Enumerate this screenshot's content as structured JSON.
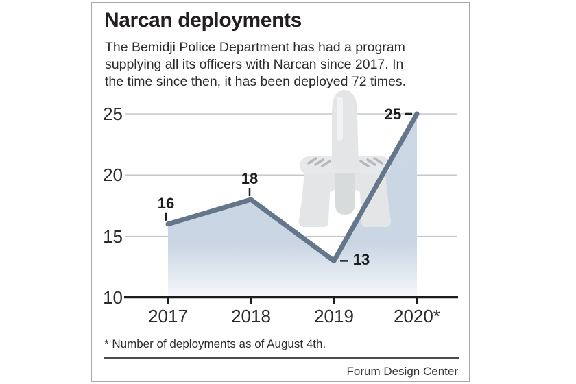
{
  "header": {
    "title": "Narcan deployments",
    "subtitle_lines": [
      "The Bemidji Police Department has had a program",
      "supplying all its officers with Narcan since 2017. In",
      "the time since then, it has been deployed 72 times."
    ]
  },
  "chart_data": {
    "type": "area",
    "title": "Narcan deployments",
    "categories": [
      "2017",
      "2018",
      "2019",
      "2020*"
    ],
    "values": [
      16,
      18,
      13,
      25
    ],
    "xlabel": "",
    "ylabel": "",
    "ylim": [
      10,
      25
    ],
    "yticks": [
      25,
      20,
      15,
      10
    ],
    "grid": true,
    "legend": "none",
    "total_deployments_noted_in_subtitle": 72
  },
  "footer": {
    "note": "* Number of deployments as of August 4th.",
    "credit": "Forum Design Center"
  },
  "colors": {
    "line": "#64768c",
    "area_fill_top": "#cbd7e3",
    "area_fill_bottom": "#f4f7fa",
    "gridline": "#c6c7c8",
    "axis": "#1c1c1c",
    "text": "#231f20",
    "card_border": "#a6aaab",
    "device_body": "#e3e5e6"
  },
  "icons": {
    "illustration": "narcan-nasal-spray-illustration"
  }
}
